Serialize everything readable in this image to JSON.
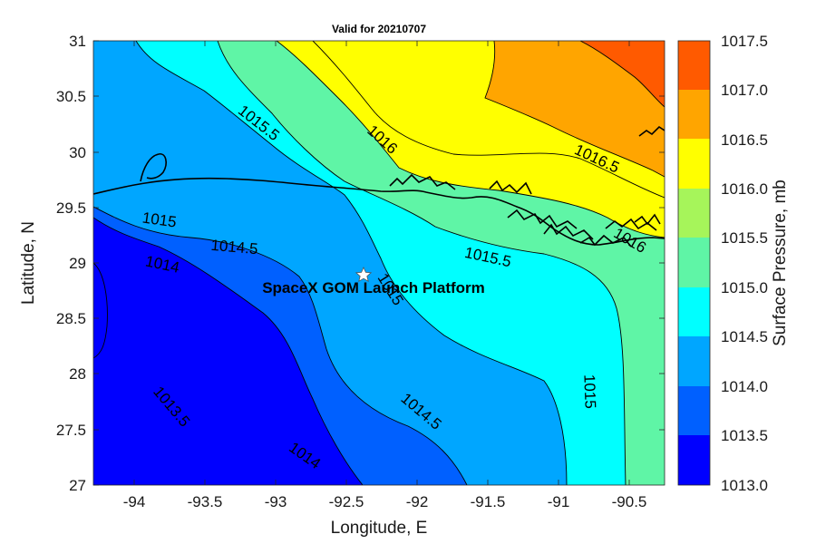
{
  "title": "Valid for 20210707",
  "xlabel": "Longitude, E",
  "ylabel": "Latitude, N",
  "x_ticks": [
    "-94",
    "-93.5",
    "-93",
    "-92.5",
    "-92",
    "-91.5",
    "-91",
    "-90.5"
  ],
  "y_ticks": [
    "31",
    "30.5",
    "30",
    "29.5",
    "29",
    "28.5",
    "28",
    "27.5",
    "27"
  ],
  "colorbar": {
    "label": "Surface Pressure, mb",
    "ticks": [
      "1017.5",
      "1017.0",
      "1016.5",
      "1016.0",
      "1015.5",
      "1015.0",
      "1014.5",
      "1014.0",
      "1013.5",
      "1013.0"
    ],
    "colors": [
      "#0000ff",
      "#0060ff",
      "#00a6ff",
      "#00ffff",
      "#5ff5a6",
      "#a6f55a",
      "#ffff00",
      "#ffa500",
      "#ff5a00"
    ]
  },
  "contour_labels": [
    "1015.5",
    "1016",
    "1016.5",
    "1015",
    "1014.5",
    "1015.5",
    "1014",
    "1015",
    "1015",
    "1013.5",
    "1014.5",
    "1014",
    "1016"
  ],
  "annotation": "SpaceX GOM Launch Platform",
  "marker_icon": "star-icon",
  "chart_data": {
    "type": "contour map",
    "title": "Valid for 20210707",
    "xlabel": "Longitude, E",
    "ylabel": "Latitude, N",
    "xlim": [
      -94.3,
      -90.25
    ],
    "ylim": [
      27,
      31
    ],
    "x_ticks": [
      -94,
      -93.5,
      -93,
      -92.5,
      -92,
      -91.5,
      -91,
      -90.5
    ],
    "y_ticks": [
      27,
      27.5,
      28,
      28.5,
      29,
      29.5,
      30,
      30.5,
      31
    ],
    "colorbar_label": "Surface Pressure, mb",
    "levels": [
      1013.0,
      1013.5,
      1014.0,
      1014.5,
      1015.0,
      1015.5,
      1016.0,
      1016.5,
      1017.0,
      1017.5
    ],
    "level_colors": [
      "#0000ff",
      "#0060ff",
      "#00a6ff",
      "#00ffff",
      "#5ff5a6",
      "#a6f55a",
      "#ffff00",
      "#ffa500",
      "#ff5a00"
    ],
    "contour_labels": [
      {
        "text": "1015.5",
        "lon": -93.1,
        "lat": 30.25
      },
      {
        "text": "1016",
        "lon": -92.2,
        "lat": 30.1
      },
      {
        "text": "1016.5",
        "lon": -90.75,
        "lat": 29.92
      },
      {
        "text": "1015",
        "lon": -93.7,
        "lat": 29.35
      },
      {
        "text": "1014.5",
        "lon": -93.25,
        "lat": 29.15
      },
      {
        "text": "1015.5",
        "lon": -91.55,
        "lat": 29.03
      },
      {
        "text": "1014",
        "lon": -93.8,
        "lat": 28.98
      },
      {
        "text": "1015",
        "lon": -92.27,
        "lat": 28.78
      },
      {
        "text": "1015",
        "lon": -90.8,
        "lat": 27.9
      },
      {
        "text": "1013.5",
        "lon": -93.9,
        "lat": 27.75
      },
      {
        "text": "1014.5",
        "lon": -91.95,
        "lat": 27.7
      },
      {
        "text": "1014",
        "lon": -92.9,
        "lat": 27.2
      },
      {
        "text": "1016",
        "lon": -90.5,
        "lat": 29.3
      }
    ],
    "marker": {
      "name": "SpaceX GOM Launch Platform",
      "lon": -92.35,
      "lat": 28.9
    },
    "grid": false
  }
}
